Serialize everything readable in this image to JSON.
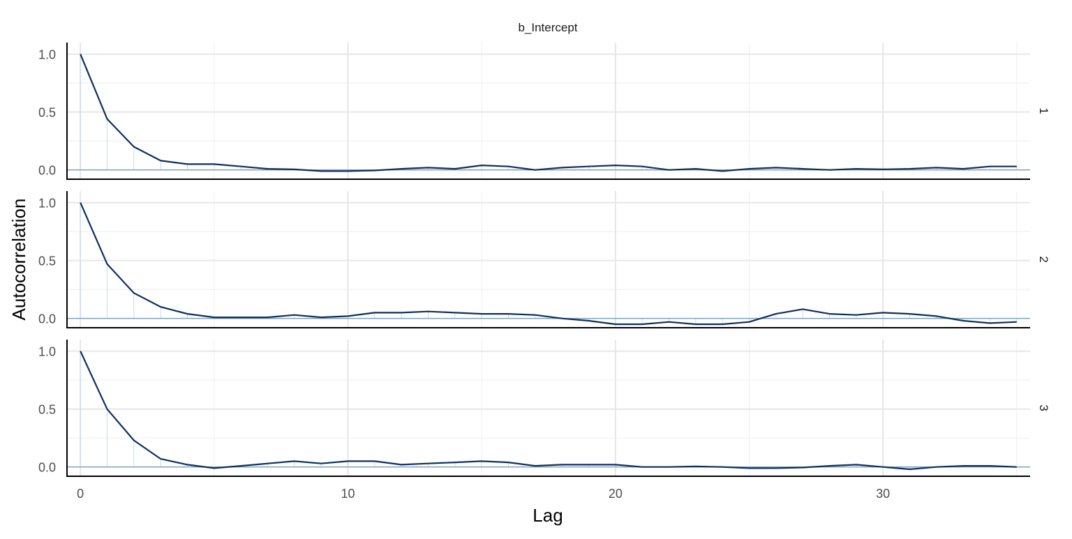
{
  "chart_data": {
    "type": "line",
    "title": "b_Intercept",
    "xlabel": "Lag",
    "ylabel": "Autocorrelation",
    "xlim": [
      -0.5,
      35.5
    ],
    "ylim": [
      -0.08,
      1.1
    ],
    "x_ticks": [
      0,
      10,
      20,
      30
    ],
    "y_ticks": [
      0.0,
      0.5,
      1.0
    ],
    "y_tick_labels": [
      "0.0",
      "0.5",
      "1.0"
    ],
    "x": [
      0,
      1,
      2,
      3,
      4,
      5,
      6,
      7,
      8,
      9,
      10,
      11,
      12,
      13,
      14,
      15,
      16,
      17,
      18,
      19,
      20,
      21,
      22,
      23,
      24,
      25,
      26,
      27,
      28,
      29,
      30,
      31,
      32,
      33,
      34,
      35
    ],
    "grid": true,
    "facet_labels_side": "right",
    "series": [
      {
        "name": "1",
        "values": [
          1.0,
          0.44,
          0.2,
          0.08,
          0.05,
          0.05,
          0.03,
          0.01,
          0.005,
          -0.01,
          -0.01,
          -0.005,
          0.01,
          0.02,
          0.01,
          0.04,
          0.03,
          0.0,
          0.02,
          0.03,
          0.04,
          0.03,
          0.0,
          0.01,
          -0.01,
          0.01,
          0.02,
          0.01,
          0.0,
          0.01,
          0.005,
          0.01,
          0.02,
          0.01,
          0.03,
          0.03
        ]
      },
      {
        "name": "2",
        "values": [
          1.0,
          0.47,
          0.22,
          0.1,
          0.04,
          0.01,
          0.01,
          0.01,
          0.03,
          0.01,
          0.02,
          0.05,
          0.05,
          0.06,
          0.05,
          0.04,
          0.04,
          0.03,
          0.0,
          -0.02,
          -0.05,
          -0.05,
          -0.03,
          -0.05,
          -0.05,
          -0.03,
          0.04,
          0.08,
          0.04,
          0.03,
          0.05,
          0.04,
          0.02,
          -0.02,
          -0.04,
          -0.03
        ]
      },
      {
        "name": "3",
        "values": [
          1.0,
          0.5,
          0.23,
          0.07,
          0.02,
          -0.01,
          0.01,
          0.03,
          0.05,
          0.03,
          0.05,
          0.05,
          0.02,
          0.03,
          0.04,
          0.05,
          0.04,
          0.01,
          0.02,
          0.02,
          0.02,
          0.0,
          0.0,
          0.005,
          0.0,
          -0.01,
          -0.01,
          -0.005,
          0.01,
          0.02,
          0.0,
          -0.02,
          0.0,
          0.01,
          0.01,
          0.0
        ]
      }
    ],
    "colors": {
      "line": "#0d2f5e",
      "stem": "#c6dbef",
      "zero": "#6b96b4"
    }
  }
}
